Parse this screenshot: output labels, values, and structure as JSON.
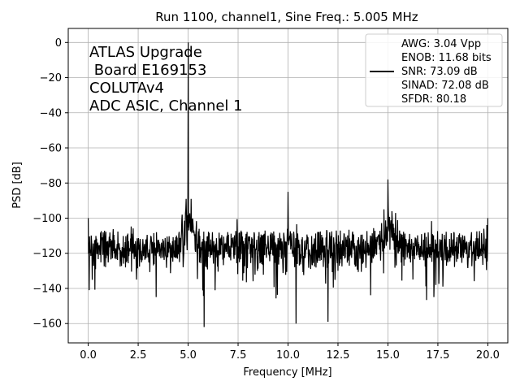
{
  "chart_data": {
    "type": "line",
    "title": "Run 1100, channel1, Sine Freq.: 5.005 MHz",
    "xlabel": "Frequency [MHz]",
    "ylabel": "PSD [dB]",
    "xlim": [
      -1.0,
      21.0
    ],
    "ylim": [
      -171,
      8
    ],
    "xticks": [
      0.0,
      2.5,
      5.0,
      7.5,
      10.0,
      12.5,
      15.0,
      17.5,
      20.0
    ],
    "xtick_labels": [
      "0.0",
      "2.5",
      "5.0",
      "7.5",
      "10.0",
      "12.5",
      "15.0",
      "17.5",
      "20.0"
    ],
    "yticks": [
      0,
      -20,
      -40,
      -60,
      -80,
      -100,
      -120,
      -140,
      -160
    ],
    "ytick_labels": [
      "0",
      "−20",
      "−40",
      "−60",
      "−80",
      "−100",
      "−120",
      "−140",
      "−160"
    ],
    "grid": true,
    "line_color": "#000000",
    "annotation": [
      "ATLAS Upgrade",
      " Board E169153",
      "COLUTAv4",
      "ADC ASIC, Channel 1"
    ],
    "legend": {
      "placement": "top-right",
      "entries": [
        "AWG: 3.04 Vpp",
        "ENOB: 11.68 bits",
        "SNR: 73.09 dB",
        "SINAD: 72.08 dB",
        "SFDR: 80.18"
      ]
    },
    "noise_floor_db": -115,
    "peaks": [
      {
        "x": 0.0,
        "y": -100
      },
      {
        "x": 0.05,
        "y": -141
      },
      {
        "x": 4.7,
        "y": -98
      },
      {
        "x": 4.9,
        "y": -89
      },
      {
        "x": 5.005,
        "y": 0
      },
      {
        "x": 5.15,
        "y": -89
      },
      {
        "x": 5.8,
        "y": -162
      },
      {
        "x": 10.0,
        "y": -85
      },
      {
        "x": 10.4,
        "y": -160
      },
      {
        "x": 12.0,
        "y": -159
      },
      {
        "x": 14.8,
        "y": -95
      },
      {
        "x": 15.0,
        "y": -78
      },
      {
        "x": 15.2,
        "y": -96
      },
      {
        "x": 19.8,
        "y": -106
      },
      {
        "x": 20.0,
        "y": -100
      }
    ]
  }
}
